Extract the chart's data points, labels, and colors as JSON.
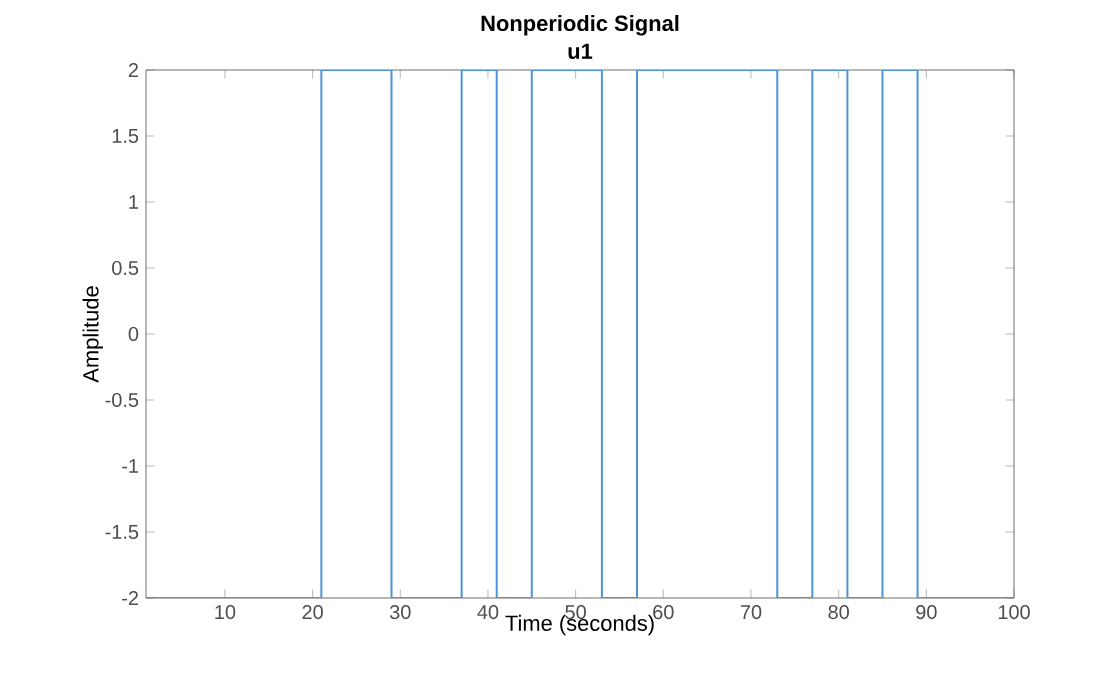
{
  "chart_data": {
    "type": "step",
    "title": "Nonperiodic Signal",
    "subtitle": "u1",
    "xlabel": "Time (seconds)",
    "ylabel": "Amplitude",
    "x": [
      1,
      21,
      29,
      37,
      41,
      45,
      53,
      57,
      73,
      77,
      81,
      85,
      89,
      100
    ],
    "values": [
      -2,
      2,
      -2,
      2,
      -2,
      2,
      -2,
      2,
      -2,
      2,
      -2,
      2,
      -2,
      -2
    ],
    "color": "#4d94d6",
    "xlim": [
      1,
      100
    ],
    "ylim": [
      -2,
      2
    ],
    "xticks": [
      10,
      20,
      30,
      40,
      50,
      60,
      70,
      80,
      90,
      100
    ],
    "yticks": [
      -2,
      -1.5,
      -1,
      -0.5,
      0,
      0.5,
      1,
      1.5,
      2
    ],
    "grid": false
  }
}
